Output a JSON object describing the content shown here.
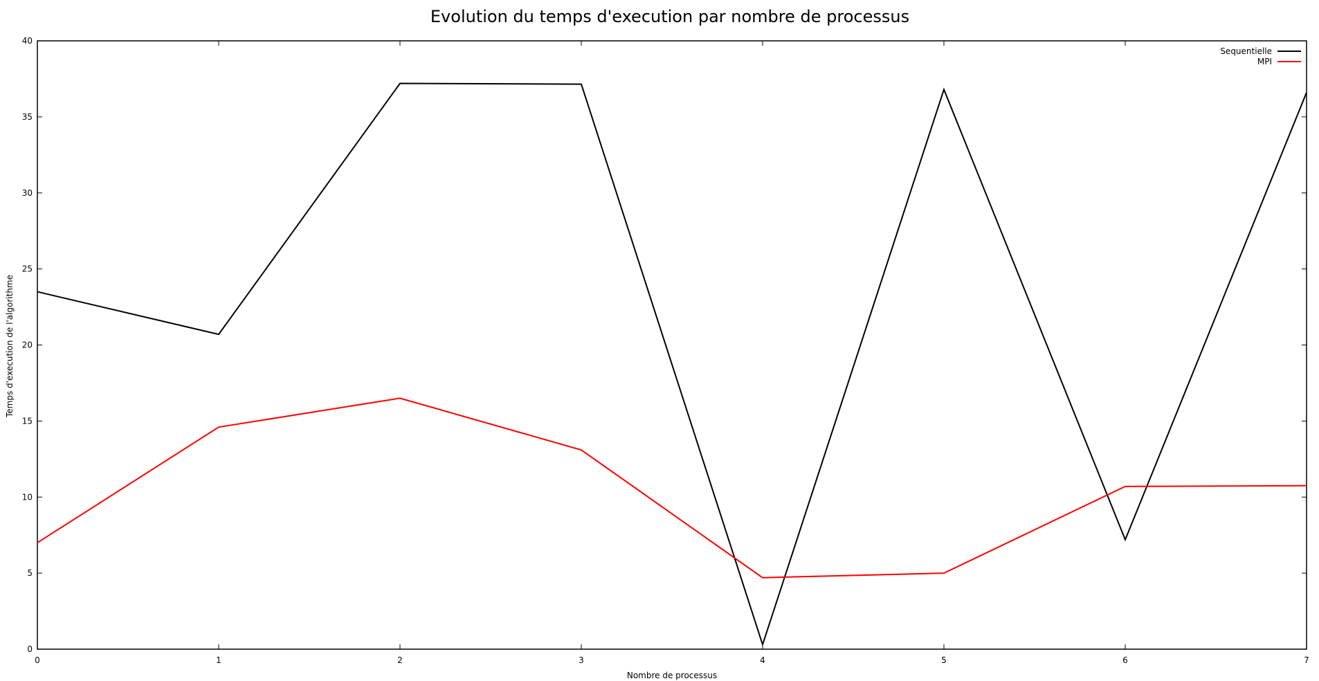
{
  "chart_data": {
    "type": "line",
    "title": "Evolution du temps d'execution par nombre de processus",
    "xlabel": "Nombre de processus",
    "ylabel": "Temps d'execution de l'algorithme",
    "x": [
      0,
      1,
      2,
      3,
      4,
      5,
      6,
      7
    ],
    "xlim": [
      0,
      7
    ],
    "ylim": [
      0,
      40
    ],
    "xticks": [
      "0",
      "1",
      "2",
      "3",
      "4",
      "5",
      "6",
      "7"
    ],
    "yticks": [
      "0",
      "5",
      "10",
      "15",
      "20",
      "25",
      "30",
      "35",
      "40"
    ],
    "grid": false,
    "legend_position": "top-right",
    "series": [
      {
        "name": "Sequentielle",
        "color": "#000000",
        "values": [
          23.5,
          20.7,
          37.2,
          37.15,
          0.3,
          36.8,
          7.2,
          36.6
        ]
      },
      {
        "name": "MPI",
        "color": "#ff0000",
        "values": [
          7.0,
          14.6,
          16.5,
          13.1,
          4.7,
          5.0,
          10.7,
          10.75
        ]
      }
    ]
  }
}
